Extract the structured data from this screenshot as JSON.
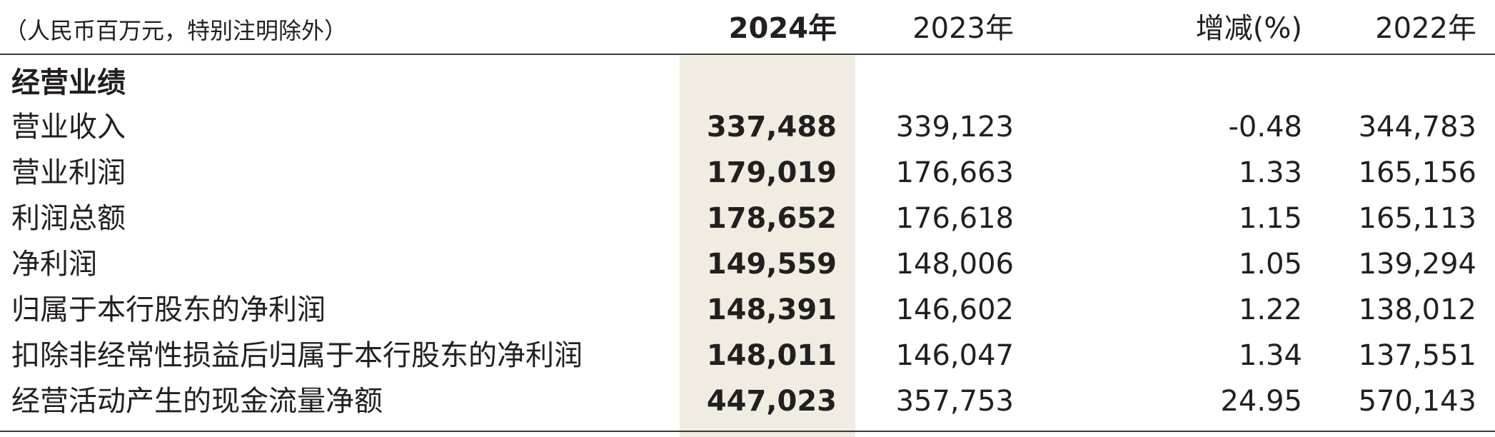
{
  "table": {
    "unit_note": "（人民币百万元，特别注明除外）",
    "headers": {
      "y2024": "2024年",
      "y2023": "2023年",
      "change": "增减(%)",
      "y2022": "2022年"
    },
    "section_title": "经营业绩",
    "rows": [
      {
        "label": "营业收入",
        "y2024": "337,488",
        "y2023": "339,123",
        "change": "-0.48",
        "y2022": "344,783"
      },
      {
        "label": "营业利润",
        "y2024": "179,019",
        "y2023": "176,663",
        "change": "1.33",
        "y2022": "165,156"
      },
      {
        "label": "利润总额",
        "y2024": "178,652",
        "y2023": "176,618",
        "change": "1.15",
        "y2022": "165,113"
      },
      {
        "label": "净利润",
        "y2024": "149,559",
        "y2023": "148,006",
        "change": "1.05",
        "y2022": "139,294"
      },
      {
        "label": "归属于本行股东的净利润",
        "y2024": "148,391",
        "y2023": "146,602",
        "change": "1.22",
        "y2022": "138,012"
      },
      {
        "label": "扣除非经常性损益后归属于本行股东的净利润",
        "y2024": "148,011",
        "y2023": "146,047",
        "change": "1.34",
        "y2022": "137,551"
      },
      {
        "label": "经营活动产生的现金流量净额",
        "y2024": "447,023",
        "y2023": "357,753",
        "change": "24.95",
        "y2022": "570,143"
      }
    ]
  },
  "colors": {
    "highlight_column": "#f1ece2",
    "text": "#231f20",
    "rule": "#3a3a3a"
  }
}
